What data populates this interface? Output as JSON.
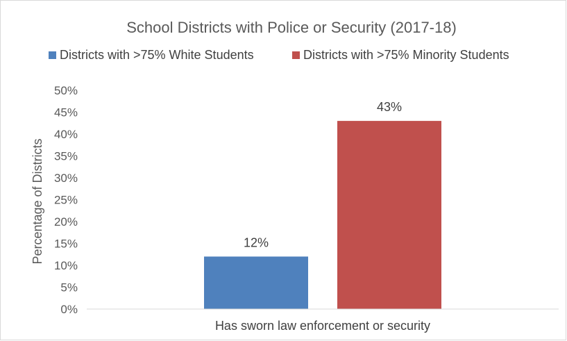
{
  "chart_data": {
    "type": "bar",
    "title": "School Districts with Police or Security (2017-18)",
    "categories": [
      "Has sworn law enforcement or security"
    ],
    "series": [
      {
        "name": "Districts with >75% White Students",
        "values": [
          12
        ],
        "color": "#4f81bd",
        "label": "12%"
      },
      {
        "name": "Districts with >75% Minority Students",
        "values": [
          43
        ],
        "color": "#c0504d",
        "label": "43%"
      }
    ],
    "xlabel": "",
    "ylabel": "Percentage of Districts",
    "ylim": [
      0,
      50
    ],
    "ytick_values": [
      0,
      5,
      10,
      15,
      20,
      25,
      30,
      35,
      40,
      45,
      50
    ],
    "ytick_labels": [
      "0%",
      "5%",
      "10%",
      "15%",
      "20%",
      "25%",
      "30%",
      "35%",
      "40%",
      "45%",
      "50%"
    ],
    "legend_position": "top",
    "grid": false
  }
}
